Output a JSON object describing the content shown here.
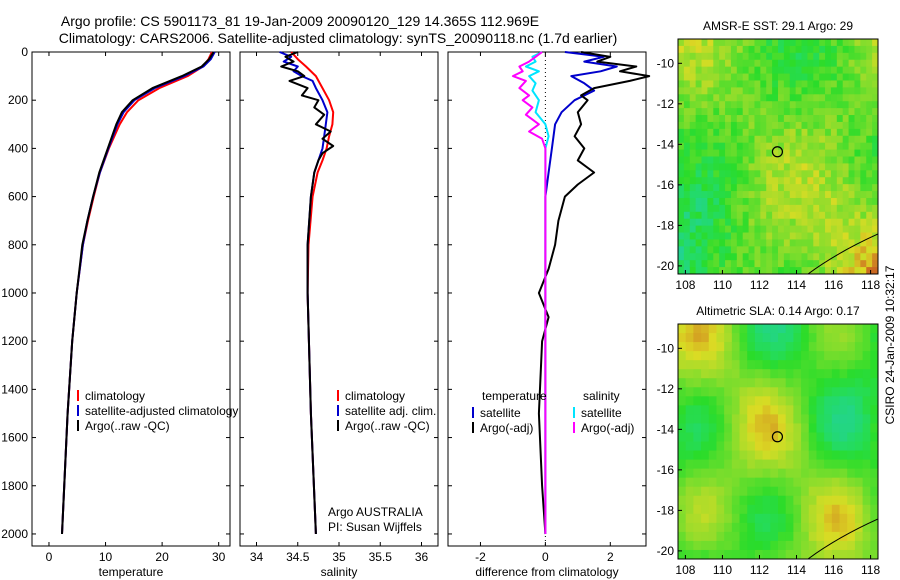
{
  "header": {
    "title_line1": "Argo profile: CS 5901173_81 19-Jan-2009 20090120_129 14.365S 112.969E",
    "title_line2": "Climatology: CARS2006. Satellite-adjusted climatology: synTS_20090118.nc (1.7d earlier)"
  },
  "side_label": "CSIRO 24-Jan-2009 10:32:17",
  "colors": {
    "climatology": "#ff0000",
    "satellite": "#0000cc",
    "argo": "#000000",
    "satellite_salinity": "#00e5ff",
    "argo_salinity_adj": "#ff00ff"
  },
  "chart_data": [
    {
      "type": "line",
      "name": "temperature-profile",
      "xlabel": "temperature",
      "ylabel": "",
      "xlim": [
        -3,
        32
      ],
      "ylim": [
        2050,
        0
      ],
      "xticks": [
        0,
        10,
        20,
        30
      ],
      "yticks": [
        0,
        200,
        400,
        600,
        800,
        1000,
        1200,
        1400,
        1600,
        1800,
        2000
      ],
      "yticks_labeled": true,
      "legend": {
        "position": "bottom-right",
        "entries": [
          {
            "label": "climatology",
            "series": "climatology"
          },
          {
            "label": "satellite-adjusted climatology",
            "series": "satellite"
          },
          {
            "label": "Argo(..raw -QC)",
            "series": "argo"
          }
        ]
      },
      "series": [
        {
          "name": "climatology",
          "color": "#ff0000",
          "depth": [
            0,
            30,
            60,
            100,
            150,
            200,
            250,
            300,
            400,
            500,
            600,
            700,
            800,
            1000,
            1200,
            1500,
            2000
          ],
          "values": [
            28.8,
            28.2,
            27.2,
            24.5,
            19.5,
            15.8,
            13.8,
            12.5,
            10.6,
            9.0,
            7.9,
            6.9,
            6.0,
            4.9,
            4.1,
            3.3,
            2.3
          ]
        },
        {
          "name": "satellite",
          "color": "#0000cc",
          "depth": [
            0,
            30,
            60,
            100,
            150,
            200,
            250,
            300,
            400,
            500,
            600,
            700,
            800,
            1000,
            1200,
            1500,
            2000
          ],
          "values": [
            29.3,
            28.6,
            27.3,
            23.9,
            18.7,
            15.1,
            13.2,
            12.1,
            10.5,
            9.0,
            7.8,
            6.8,
            6.0,
            4.9,
            4.1,
            3.3,
            2.3
          ]
        },
        {
          "name": "argo",
          "color": "#000000",
          "depth": [
            0,
            30,
            60,
            100,
            150,
            200,
            250,
            300,
            400,
            500,
            600,
            700,
            800,
            1000,
            1200,
            1500,
            2000
          ],
          "values": [
            29.1,
            28.3,
            27.0,
            23.5,
            18.3,
            14.8,
            12.9,
            11.9,
            10.4,
            8.9,
            7.8,
            6.8,
            5.9,
            4.9,
            4.1,
            3.3,
            2.3
          ]
        }
      ]
    },
    {
      "type": "line",
      "name": "salinity-profile",
      "xlabel": "salinity",
      "xlim": [
        33.8,
        36.2
      ],
      "ylim": [
        2050,
        0
      ],
      "xticks": [
        34,
        34.5,
        35,
        35.5,
        36
      ],
      "yticks": [
        0,
        200,
        400,
        600,
        800,
        1000,
        1200,
        1400,
        1600,
        1800,
        2000
      ],
      "yticks_labeled": false,
      "annotations": [
        "Argo AUSTRALIA",
        "PI: Susan Wijffels"
      ],
      "legend": {
        "position": "bottom-right",
        "entries": [
          {
            "label": "climatology",
            "series": "climatology"
          },
          {
            "label": "satellite adj. clim.",
            "series": "satellite"
          },
          {
            "label": "Argo(..raw -QC)",
            "series": "argo"
          }
        ]
      },
      "series": [
        {
          "name": "climatology",
          "color": "#ff0000",
          "depth": [
            0,
            30,
            60,
            100,
            150,
            200,
            250,
            300,
            350,
            400,
            450,
            500,
            600,
            800,
            1000,
            1500,
            2000
          ],
          "values": [
            34.42,
            34.5,
            34.6,
            34.72,
            34.8,
            34.88,
            34.93,
            34.92,
            34.88,
            34.85,
            34.8,
            34.74,
            34.68,
            34.63,
            34.62,
            34.66,
            34.72
          ]
        },
        {
          "name": "satellite",
          "color": "#0000cc",
          "depth": [
            0,
            20,
            40,
            60,
            80,
            100,
            120,
            150,
            200,
            250,
            300,
            350,
            400,
            450,
            500,
            600,
            800,
            1000,
            1500,
            2000
          ],
          "values": [
            34.28,
            34.42,
            34.33,
            34.5,
            34.45,
            34.55,
            34.68,
            34.72,
            34.8,
            34.86,
            34.84,
            34.82,
            34.8,
            34.75,
            34.7,
            34.66,
            34.62,
            34.62,
            34.66,
            34.72
          ]
        },
        {
          "name": "argo",
          "color": "#000000",
          "depth": [
            0,
            20,
            40,
            60,
            80,
            100,
            120,
            150,
            180,
            200,
            230,
            260,
            300,
            330,
            360,
            390,
            420,
            450,
            500,
            600,
            800,
            1000,
            1500,
            2000
          ],
          "values": [
            34.5,
            34.35,
            34.45,
            34.3,
            34.5,
            34.58,
            34.4,
            34.62,
            34.55,
            34.75,
            34.7,
            34.82,
            34.72,
            34.9,
            34.8,
            34.93,
            34.8,
            34.75,
            34.7,
            34.66,
            34.62,
            34.62,
            34.66,
            34.72
          ]
        }
      ]
    },
    {
      "type": "line",
      "name": "difference-profile",
      "xlabel": "difference from climatology",
      "xlim": [
        -3.0,
        3.1
      ],
      "ylim": [
        2050,
        0
      ],
      "xticks": [
        -2,
        0,
        2
      ],
      "yticks": [
        0,
        200,
        400,
        600,
        800,
        1000,
        1200,
        1400,
        1600,
        1800,
        2000
      ],
      "yticks_labeled": false,
      "zero_line": true,
      "legend": {
        "position": "bottom",
        "temperature_header": "temperature",
        "salinity_header": "salinity",
        "entries": [
          {
            "label": "satellite",
            "series": "temp_satellite"
          },
          {
            "label": "Argo(-adj)",
            "series": "temp_argo"
          },
          {
            "label": "satellite",
            "series": "sal_satellite"
          },
          {
            "label": "Argo(-adj)",
            "series": "sal_argo"
          }
        ]
      },
      "series": [
        {
          "name": "temp_satellite",
          "color": "#0000cc",
          "depth": [
            0,
            20,
            40,
            60,
            80,
            100,
            130,
            160,
            200,
            250,
            300,
            400,
            500,
            600,
            800,
            1000,
            1500,
            2000
          ],
          "values": [
            0.6,
            1.8,
            1.2,
            2.2,
            1.7,
            0.8,
            1.2,
            1.5,
            0.9,
            0.5,
            0.3,
            0.2,
            0.1,
            0.0,
            0.0,
            0.0,
            0.0,
            0.0
          ]
        },
        {
          "name": "temp_argo",
          "color": "#000000",
          "depth": [
            0,
            20,
            40,
            60,
            80,
            100,
            120,
            150,
            180,
            200,
            250,
            300,
            350,
            400,
            450,
            500,
            550,
            600,
            700,
            800,
            900,
            1000,
            1100,
            1200,
            1500,
            1800,
            2000
          ],
          "values": [
            1.1,
            2.0,
            1.6,
            2.8,
            2.3,
            3.2,
            2.6,
            1.5,
            1.1,
            1.3,
            1.0,
            1.1,
            0.9,
            1.2,
            1.0,
            1.5,
            1.0,
            0.6,
            0.4,
            0.3,
            0.1,
            -0.2,
            0.1,
            -0.1,
            -0.2,
            -0.1,
            0.0
          ]
        },
        {
          "name": "sal_satellite",
          "color": "#00e5ff",
          "depth": [
            0,
            20,
            40,
            60,
            80,
            100,
            130,
            160,
            200,
            250,
            300,
            350,
            400,
            500,
            600,
            800,
            1000,
            1500,
            2000
          ],
          "values": [
            -0.1,
            -0.4,
            -0.3,
            -0.6,
            -0.2,
            -0.5,
            -0.3,
            -0.4,
            -0.2,
            -0.3,
            0.0,
            0.1,
            0.0,
            0.0,
            0.0,
            0.0,
            0.0,
            0.0,
            0.0
          ]
        },
        {
          "name": "sal_argo",
          "color": "#ff00ff",
          "depth": [
            0,
            20,
            40,
            60,
            80,
            100,
            120,
            150,
            180,
            200,
            230,
            260,
            300,
            330,
            360,
            400,
            450,
            500,
            600,
            800,
            1000,
            1500,
            2000
          ],
          "values": [
            -0.1,
            -0.3,
            -0.5,
            -0.8,
            -0.7,
            -1.0,
            -0.6,
            -0.8,
            -0.5,
            -0.7,
            -0.4,
            -0.6,
            -0.2,
            -0.5,
            -0.1,
            0.0,
            0.0,
            0.0,
            0.0,
            0.0,
            0.0,
            0.0,
            0.0
          ]
        }
      ]
    },
    {
      "type": "heatmap",
      "name": "sst-map",
      "title": "AMSR-E SST: 29.1  Argo: 29",
      "xlim": [
        107.6,
        118.4
      ],
      "ylim": [
        -20.4,
        -8.8
      ],
      "xticks": [
        108,
        110,
        112,
        114,
        116,
        118
      ],
      "yticks": [
        -10,
        -12,
        -14,
        -16,
        -18,
        -20
      ],
      "marker": {
        "lon": 112.969,
        "lat": -14.365
      }
    },
    {
      "type": "heatmap",
      "name": "sla-map",
      "title": "Altimetric SLA: 0.14  Argo: 0.17",
      "xlim": [
        107.6,
        118.4
      ],
      "ylim": [
        -20.4,
        -8.8
      ],
      "xticks": [
        108,
        110,
        112,
        114,
        116,
        118
      ],
      "yticks": [
        -10,
        -12,
        -14,
        -16,
        -18,
        -20
      ],
      "marker": {
        "lon": 112.969,
        "lat": -14.365
      }
    }
  ]
}
